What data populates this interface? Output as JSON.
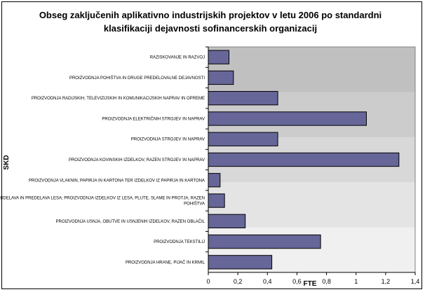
{
  "chart_data": {
    "type": "bar",
    "orientation": "horizontal",
    "title": "Obseg zaključenih aplikativno industrijskih projektov v letu 2006 po standardni klasifikaciji dejavnosti sofinancerskih organizacij",
    "xlabel": "FTE",
    "ylabel": "SKD",
    "xlim": [
      0,
      1.4
    ],
    "xticks": [
      "0",
      "0,2",
      "0,4",
      "0,6",
      "0,8",
      "1",
      "1,2",
      "1,4"
    ],
    "categories": [
      [
        "RAZISKOVANJE IN RAZVOJ"
      ],
      [
        "PROIZVODNJA POHIŠTVA IN DRUGE PREDELOVALNE DEJAVNOSTI"
      ],
      [
        "PROIZVODNJA RADIJSKIH, TELEVIZIJSKIH IN KOMUNIKACIJSKIH NAPRAV IN OPREME"
      ],
      [
        "PROIZVODNJA ELEKTRIČNIH STROJEV IN NAPRAV"
      ],
      [
        "PROIZVODNJA STROJEV IN NAPRAV"
      ],
      [
        "PROIZVODNJA KOVINSKIH IZDELKOV, RAZEN STROJEV IN NAPRAV"
      ],
      [
        "PROIZVODNJA VLAKNIN, PAPIRJA IN KARTONA TER IZDELKOV IZ PAPIRJA IN KARTONA"
      ],
      [
        "OBDELAVA IN PREDELAVA LESA; PROIZVODNJA IZDELKOV IZ LESA, PLUTE, SLAME IN PROTJA, RAZEN",
        "POHIŠTVA"
      ],
      [
        "PROIZVODNJA USNJA, OBUTVE IN USNJENIH IZDELKOV, RAZEN OBLAČIL"
      ],
      [
        "PROIZVODNJA TEKSTILIJ"
      ],
      [
        "PROIZVODNJA HRANE, PIJAČ IN KRMIL"
      ]
    ],
    "values": [
      0.14,
      0.17,
      0.47,
      1.07,
      0.47,
      1.29,
      0.08,
      0.11,
      0.25,
      0.76,
      0.43
    ],
    "grid": false,
    "legend": "none",
    "colors": {
      "bar_fill": "#666699",
      "bar_stroke": "#000000",
      "band_1": "#c0c0c0",
      "band_2": "#cccccc",
      "band_3": "#d8d8d8",
      "band_4": "#e4e4e4",
      "band_5": "#f0f0f0"
    }
  }
}
